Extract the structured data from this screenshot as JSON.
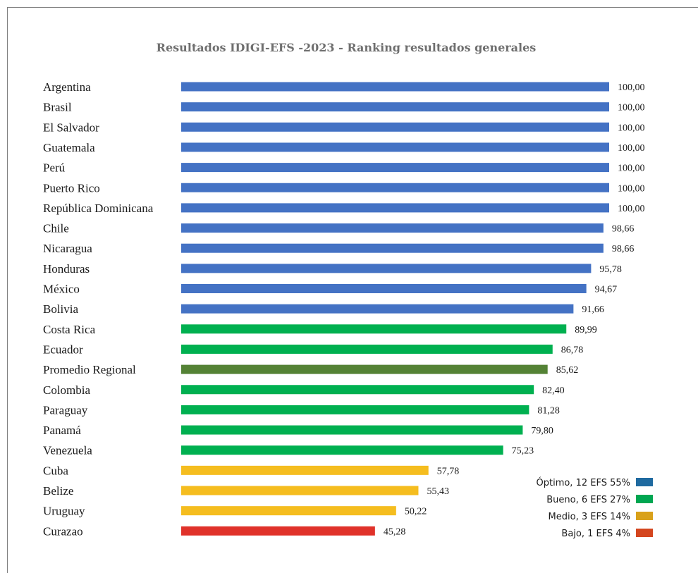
{
  "chart_data": {
    "type": "bar",
    "orientation": "horizontal",
    "title": "Resultados IDIGI-EFS -2023 - Ranking resultados generales",
    "xlim": [
      0,
      100
    ],
    "grid": false,
    "legend_position": "bottom-right",
    "categories": [
      "Argentina",
      "Brasil",
      "El Salvador",
      "Guatemala",
      "Perú",
      "Puerto Rico",
      "República Dominicana",
      "Chile",
      "Nicaragua",
      "Honduras",
      "México",
      "Bolivia",
      "Costa Rica",
      "Ecuador",
      "Promedio Regional",
      "Colombia",
      "Paraguay",
      "Panamá",
      "Venezuela",
      "Cuba",
      "Belize",
      "Uruguay",
      "Curazao"
    ],
    "values": [
      100,
      100,
      100,
      100,
      100,
      100,
      100,
      98.66,
      98.66,
      95.78,
      94.67,
      91.66,
      89.99,
      86.78,
      85.62,
      82.4,
      81.28,
      79.8,
      75.23,
      57.78,
      55.43,
      50.22,
      45.28
    ],
    "value_labels": [
      "100,00",
      "100,00",
      "100,00",
      "100,00",
      "100,00",
      "100,00",
      "100,00",
      "98,66",
      "98,66",
      "95,78",
      "94,67",
      "91,66",
      "89,99",
      "86,78",
      "85,62",
      "82,40",
      "81,28",
      "79,80",
      "75,23",
      "57,78",
      "55,43",
      "50,22",
      "45,28"
    ],
    "bar_colors": [
      "#4472c4",
      "#4472c4",
      "#4472c4",
      "#4472c4",
      "#4472c4",
      "#4472c4",
      "#4472c4",
      "#4472c4",
      "#4472c4",
      "#4472c4",
      "#4472c4",
      "#4472c4",
      "#00b050",
      "#00b050",
      "#548235",
      "#00b050",
      "#00b050",
      "#00b050",
      "#00b050",
      "#f5bd1f",
      "#f5bd1f",
      "#f5bd1f",
      "#e0322a"
    ],
    "legend": [
      {
        "label": "Óptimo, 12 EFS  55%",
        "color": "#1f6aa0"
      },
      {
        "label": "Bueno, 6 EFS 27%",
        "color": "#00a651"
      },
      {
        "label": "Medio, 3 EFS 14%",
        "color": "#d9a11a"
      },
      {
        "label": "Bajo, 1 EFS 4%",
        "color": "#d4461f"
      }
    ]
  }
}
